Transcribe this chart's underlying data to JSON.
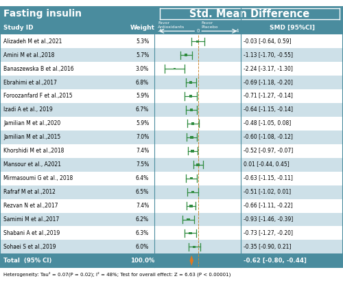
{
  "title": "Fasting insulin",
  "header_smd": "Std. Mean Difference",
  "col_study": "Study ID",
  "col_weight": "Weight",
  "col_smd": "SMD [95%CI]",
  "axis_min": -4,
  "axis_max": 4,
  "studies": [
    {
      "id": "Alizadeh M et al.,2021",
      "weight": "5.3%",
      "smd": -0.03,
      "ci_lo": -0.64,
      "ci_hi": 0.59,
      "smd_str": "-0.03 [-0.64, 0.59]"
    },
    {
      "id": "Amini M et al.,2018",
      "weight": "5.7%",
      "smd": -1.13,
      "ci_lo": -1.7,
      "ci_hi": -0.55,
      "smd_str": "-1.13 [-1.70, -0.55]"
    },
    {
      "id": "Banaszewska B et al.,2016",
      "weight": "3.0%",
      "smd": -2.24,
      "ci_lo": -3.17,
      "ci_hi": -1.3,
      "smd_str": "-2.24 [-3.17, -1.30]"
    },
    {
      "id": "Ebrahimi et al.,2017",
      "weight": "6.8%",
      "smd": -0.69,
      "ci_lo": -1.18,
      "ci_hi": -0.2,
      "smd_str": "-0.69 [-1.18, -0.20]"
    },
    {
      "id": "Foroozanfard F et al.,2015",
      "weight": "5.9%",
      "smd": -0.71,
      "ci_lo": -1.27,
      "ci_hi": -0.14,
      "smd_str": "-0.71 [-1.27, -0.14]"
    },
    {
      "id": "Izadi A et al., 2019",
      "weight": "6.7%",
      "smd": -0.64,
      "ci_lo": -1.15,
      "ci_hi": -0.14,
      "smd_str": "-0.64 [-1.15, -0.14]"
    },
    {
      "id": "Jamilian M et al.,2020",
      "weight": "5.9%",
      "smd": -0.48,
      "ci_lo": -1.05,
      "ci_hi": 0.08,
      "smd_str": "-0.48 [-1.05, 0.08]"
    },
    {
      "id": "Jamilian M et al.,2015",
      "weight": "7.0%",
      "smd": -0.6,
      "ci_lo": -1.08,
      "ci_hi": -0.12,
      "smd_str": "-0.60 [-1.08, -0.12]"
    },
    {
      "id": "Khorshidi M et al.,2018",
      "weight": "7.4%",
      "smd": -0.52,
      "ci_lo": -0.97,
      "ci_hi": -0.07,
      "smd_str": "-0.52 [-0.97, -0.07]"
    },
    {
      "id": "Mansour et al., A2021",
      "weight": "7.5%",
      "smd": 0.01,
      "ci_lo": -0.44,
      "ci_hi": 0.45,
      "smd_str": "0.01 [-0.44, 0.45]"
    },
    {
      "id": "Mirmasoumi G et al., 2018",
      "weight": "6.4%",
      "smd": -0.63,
      "ci_lo": -1.15,
      "ci_hi": -0.11,
      "smd_str": "-0.63 [-1.15, -0.11]"
    },
    {
      "id": "Rafraf M et al.,2012",
      "weight": "6.5%",
      "smd": -0.51,
      "ci_lo": -1.02,
      "ci_hi": 0.01,
      "smd_str": "-0.51 [-1.02, 0.01]"
    },
    {
      "id": "Rezvan N et al.,2017",
      "weight": "7.4%",
      "smd": -0.66,
      "ci_lo": -1.11,
      "ci_hi": -0.22,
      "smd_str": "-0.66 [-1.11, -0.22]"
    },
    {
      "id": "Samimi M et al.,2017",
      "weight": "6.2%",
      "smd": -0.93,
      "ci_lo": -1.46,
      "ci_hi": -0.39,
      "smd_str": "-0.93 [-1.46, -0.39]"
    },
    {
      "id": "Shabani A et al.,2019",
      "weight": "6.3%",
      "smd": -0.73,
      "ci_lo": -1.27,
      "ci_hi": -0.2,
      "smd_str": "-0.73 [-1.27, -0.20]"
    },
    {
      "id": "Sohaei S et al.,2019",
      "weight": "6.0%",
      "smd": -0.35,
      "ci_lo": -0.9,
      "ci_hi": 0.21,
      "smd_str": "-0.35 [-0.90, 0.21]"
    }
  ],
  "total": {
    "id": "Total  (95% CI)",
    "weight": "100.0%",
    "smd": -0.62,
    "ci_lo": -0.8,
    "ci_hi": -0.44,
    "smd_str": "-0.62 [-0.80, -0.44]"
  },
  "footnote": "Heterogeneity: Tau² = 0.07(P = 0.02); I² = 48%; Test for overall effect: Z = 6.63 (P < 0.00001)",
  "header_bg": "#4a8c9e",
  "alt_row_bg": "#cde0e8",
  "white_row_bg": "#ffffff",
  "ci_color": "#2e8b3e",
  "diamond_color": "#e07820",
  "dashed_line_color": "#cc8833",
  "border_color": "#4a8c9e",
  "smd_bg_alt": "#cde0e8",
  "smd_bg_white": "#ffffff"
}
